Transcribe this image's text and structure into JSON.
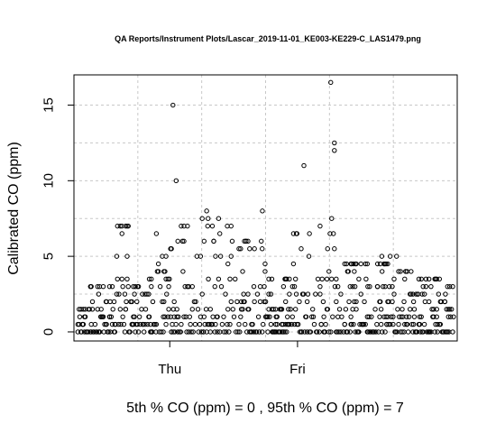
{
  "chart_data": {
    "type": "scatter",
    "title": "QA Reports/Instrument Plots/Lascar_2019-11-01_KE003-KE229-C_LAS1479.png",
    "ylabel": "Calibrated CO (ppm)",
    "xlabel": "",
    "caption": "5th % CO (ppm) =  0 , 95th % CO (ppm)  =  7",
    "x_ticks": [
      "Thu",
      "Fri"
    ],
    "y_ticks": [
      0,
      5,
      10,
      15
    ],
    "ylim": [
      -0.6,
      17
    ],
    "grid": true,
    "point_style": "open-circle",
    "y_step": 0.5,
    "clusters": [
      {
        "range": [
          0.06,
          0.2
        ],
        "ymax": 1.5
      },
      {
        "range": [
          0.2,
          0.48
        ],
        "ymax": 3
      },
      {
        "range": [
          0.48,
          0.65
        ],
        "ymax": 3
      },
      {
        "range": [
          0.65,
          0.9
        ],
        "ymax": 7
      },
      {
        "range": [
          0.9,
          1.05
        ],
        "ymax": 3
      },
      {
        "range": [
          1.05,
          1.22
        ],
        "ymax": 3.5
      },
      {
        "range": [
          1.22,
          1.36
        ],
        "ymax": 6.5
      },
      {
        "range": [
          1.36,
          1.48
        ],
        "ymax": 5
      },
      {
        "range": [
          1.48,
          1.62
        ],
        "ymax": 5.5
      },
      {
        "range": [
          1.62,
          1.82
        ],
        "ymax": 7
      },
      {
        "range": [
          1.82,
          1.92
        ],
        "ymax": 4.5
      },
      {
        "range": [
          1.92,
          2.05
        ],
        "ymax": 8
      },
      {
        "range": [
          2.05,
          2.2
        ],
        "ymax": 8
      },
      {
        "range": [
          2.2,
          2.35
        ],
        "ymax": 7.5
      },
      {
        "range": [
          2.35,
          2.5
        ],
        "ymax": 7
      },
      {
        "range": [
          2.5,
          2.62
        ],
        "ymax": 6.5
      },
      {
        "range": [
          2.62,
          2.75
        ],
        "ymax": 6
      },
      {
        "range": [
          2.75,
          2.9
        ],
        "ymax": 5.5
      },
      {
        "range": [
          2.9,
          3.0
        ],
        "ymax": 7.5
      },
      {
        "range": [
          3.0,
          3.12
        ],
        "ymax": 3.5
      },
      {
        "range": [
          3.12,
          3.28
        ],
        "ymax": 1.5
      },
      {
        "range": [
          3.28,
          3.4
        ],
        "ymax": 3.5
      },
      {
        "range": [
          3.4,
          3.55
        ],
        "ymax": 6.5
      },
      {
        "range": [
          3.55,
          3.7
        ],
        "ymax": 7.5
      },
      {
        "range": [
          3.7,
          3.85
        ],
        "ymax": 6
      },
      {
        "range": [
          3.85,
          4.0
        ],
        "ymax": 7
      },
      {
        "range": [
          4.0,
          4.1
        ],
        "ymax": 12.5
      },
      {
        "range": [
          4.1,
          4.2
        ],
        "ymax": 3.5
      },
      {
        "range": [
          4.22,
          4.4
        ],
        "ymax": 4.5
      },
      {
        "range": [
          4.4,
          4.6
        ],
        "ymax": 4.5
      },
      {
        "range": [
          4.6,
          4.75
        ],
        "ymax": 4.5
      },
      {
        "range": [
          4.75,
          5.05
        ],
        "ymax": 4.5
      },
      {
        "range": [
          5.05,
          5.2
        ],
        "ymax": 4
      },
      {
        "range": [
          5.2,
          5.3
        ],
        "ymax": 4
      },
      {
        "range": [
          5.3,
          5.45
        ],
        "ymax": 3.5
      },
      {
        "range": [
          5.45,
          5.6
        ],
        "ymax": 3.5
      },
      {
        "range": [
          5.6,
          5.72
        ],
        "ymax": 3.5
      },
      {
        "range": [
          5.72,
          5.8
        ],
        "ymax": 3.5
      },
      {
        "range": [
          5.8,
          5.95
        ],
        "ymax": 3
      }
    ],
    "outliers": [
      {
        "x": 1.55,
        "y": 15.0
      },
      {
        "x": 1.6,
        "y": 10.0
      },
      {
        "x": 3.6,
        "y": 11.0
      },
      {
        "x": 4.02,
        "y": 16.5
      },
      {
        "x": 2.1,
        "y": 7.5
      },
      {
        "x": 2.95,
        "y": 8.0
      },
      {
        "x": 3.05,
        "y": 2.5
      },
      {
        "x": 4.4,
        "y": 3.0
      },
      {
        "x": 4.6,
        "y": 3.0
      },
      {
        "x": 4.75,
        "y": 3.0
      },
      {
        "x": 4.82,
        "y": 5.0
      },
      {
        "x": 4.95,
        "y": 5.0
      },
      {
        "x": 5.05,
        "y": 5.0
      }
    ]
  }
}
